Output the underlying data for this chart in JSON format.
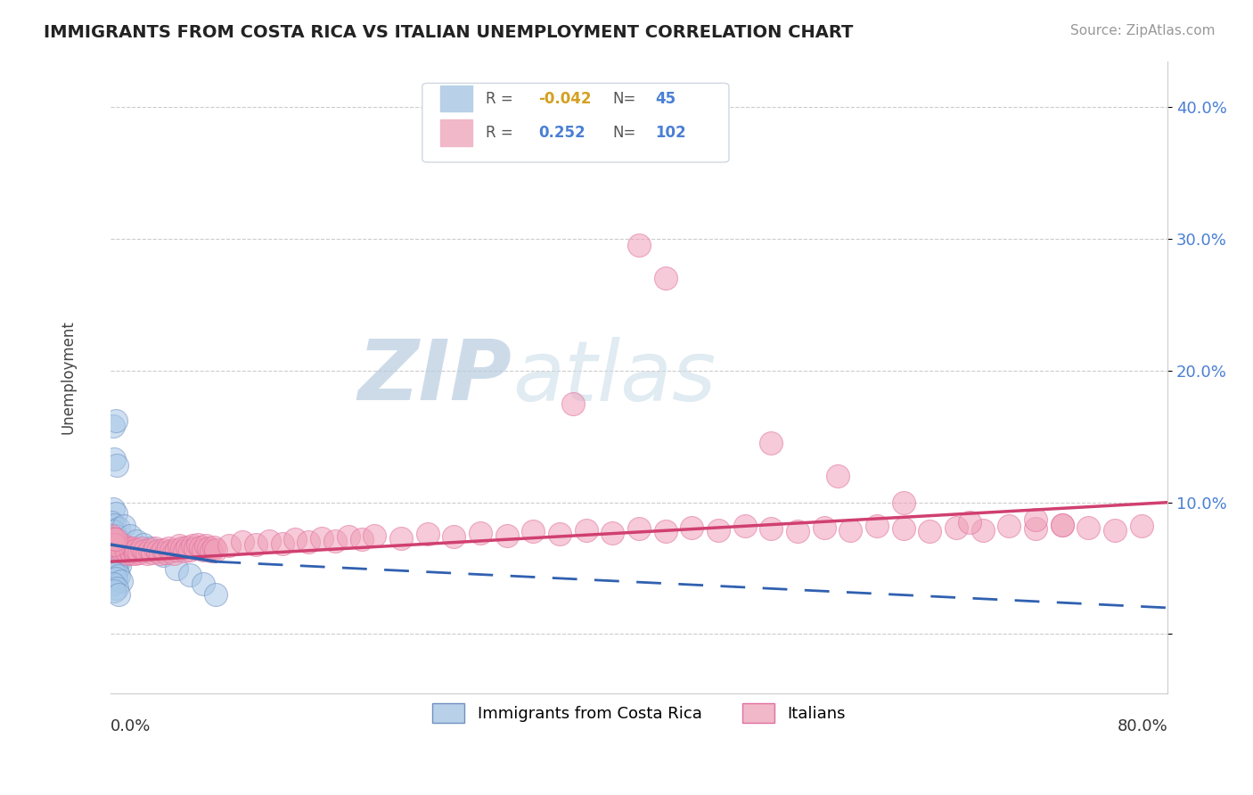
{
  "title": "IMMIGRANTS FROM COSTA RICA VS ITALIAN UNEMPLOYMENT CORRELATION CHART",
  "source": "Source: ZipAtlas.com",
  "ylabel": "Unemployment",
  "y_ticks": [
    0.0,
    0.1,
    0.2,
    0.3,
    0.4
  ],
  "y_tick_labels": [
    "",
    "10.0%",
    "20.0%",
    "30.0%",
    "40.0%"
  ],
  "x_range": [
    0.0,
    0.8
  ],
  "y_range": [
    -0.045,
    0.435
  ],
  "blue_R": -0.042,
  "blue_N": 45,
  "pink_R": 0.252,
  "pink_N": 102,
  "blue_color": "#a8c8e8",
  "pink_color": "#f0a0b8",
  "blue_edge_color": "#7090c0",
  "pink_edge_color": "#e070a0",
  "blue_line_color": "#3060b0",
  "pink_line_color": "#d04070",
  "r_negative_color": "#d4a020",
  "r_positive_color": "#4a7fd4",
  "n_color": "#4a7fd4",
  "watermark_color": "#c8d8e8",
  "legend_label_blue": "Immigrants from Costa Rica",
  "legend_label_pink": "Italians",
  "blue_scatter": [
    [
      0.002,
      0.158
    ],
    [
      0.004,
      0.162
    ],
    [
      0.003,
      0.133
    ],
    [
      0.005,
      0.128
    ],
    [
      0.002,
      0.095
    ],
    [
      0.004,
      0.092
    ],
    [
      0.001,
      0.085
    ],
    [
      0.003,
      0.083
    ],
    [
      0.006,
      0.08
    ],
    [
      0.002,
      0.078
    ],
    [
      0.004,
      0.075
    ],
    [
      0.005,
      0.072
    ],
    [
      0.007,
      0.07
    ],
    [
      0.003,
      0.068
    ],
    [
      0.008,
      0.067
    ],
    [
      0.006,
      0.066
    ],
    [
      0.004,
      0.065
    ],
    [
      0.007,
      0.063
    ],
    [
      0.002,
      0.062
    ],
    [
      0.005,
      0.06
    ],
    [
      0.008,
      0.059
    ],
    [
      0.003,
      0.057
    ],
    [
      0.006,
      0.055
    ],
    [
      0.004,
      0.054
    ],
    [
      0.007,
      0.052
    ],
    [
      0.002,
      0.05
    ],
    [
      0.005,
      0.048
    ],
    [
      0.003,
      0.046
    ],
    [
      0.006,
      0.044
    ],
    [
      0.004,
      0.042
    ],
    [
      0.008,
      0.04
    ],
    [
      0.002,
      0.038
    ],
    [
      0.005,
      0.035
    ],
    [
      0.003,
      0.033
    ],
    [
      0.006,
      0.03
    ],
    [
      0.01,
      0.082
    ],
    [
      0.015,
      0.075
    ],
    [
      0.02,
      0.071
    ],
    [
      0.025,
      0.068
    ],
    [
      0.03,
      0.065
    ],
    [
      0.04,
      0.06
    ],
    [
      0.05,
      0.05
    ],
    [
      0.06,
      0.045
    ],
    [
      0.07,
      0.038
    ],
    [
      0.08,
      0.03
    ]
  ],
  "pink_scatter": [
    [
      0.001,
      0.075
    ],
    [
      0.002,
      0.072
    ],
    [
      0.003,
      0.07
    ],
    [
      0.004,
      0.068
    ],
    [
      0.005,
      0.066
    ],
    [
      0.006,
      0.064
    ],
    [
      0.007,
      0.068
    ],
    [
      0.008,
      0.065
    ],
    [
      0.009,
      0.063
    ],
    [
      0.01,
      0.067
    ],
    [
      0.011,
      0.065
    ],
    [
      0.012,
      0.063
    ],
    [
      0.013,
      0.061
    ],
    [
      0.014,
      0.065
    ],
    [
      0.015,
      0.063
    ],
    [
      0.016,
      0.061
    ],
    [
      0.017,
      0.065
    ],
    [
      0.018,
      0.063
    ],
    [
      0.019,
      0.061
    ],
    [
      0.02,
      0.064
    ],
    [
      0.022,
      0.062
    ],
    [
      0.024,
      0.065
    ],
    [
      0.026,
      0.063
    ],
    [
      0.028,
      0.061
    ],
    [
      0.03,
      0.064
    ],
    [
      0.032,
      0.062
    ],
    [
      0.034,
      0.065
    ],
    [
      0.036,
      0.063
    ],
    [
      0.038,
      0.061
    ],
    [
      0.04,
      0.064
    ],
    [
      0.042,
      0.062
    ],
    [
      0.044,
      0.065
    ],
    [
      0.046,
      0.063
    ],
    [
      0.048,
      0.061
    ],
    [
      0.05,
      0.064
    ],
    [
      0.052,
      0.067
    ],
    [
      0.054,
      0.065
    ],
    [
      0.056,
      0.063
    ],
    [
      0.058,
      0.066
    ],
    [
      0.06,
      0.064
    ],
    [
      0.062,
      0.067
    ],
    [
      0.064,
      0.065
    ],
    [
      0.066,
      0.068
    ],
    [
      0.068,
      0.066
    ],
    [
      0.07,
      0.064
    ],
    [
      0.072,
      0.067
    ],
    [
      0.074,
      0.065
    ],
    [
      0.076,
      0.063
    ],
    [
      0.078,
      0.066
    ],
    [
      0.08,
      0.064
    ],
    [
      0.09,
      0.067
    ],
    [
      0.1,
      0.07
    ],
    [
      0.11,
      0.068
    ],
    [
      0.12,
      0.071
    ],
    [
      0.13,
      0.069
    ],
    [
      0.14,
      0.072
    ],
    [
      0.15,
      0.07
    ],
    [
      0.16,
      0.073
    ],
    [
      0.17,
      0.071
    ],
    [
      0.18,
      0.074
    ],
    [
      0.19,
      0.072
    ],
    [
      0.2,
      0.075
    ],
    [
      0.22,
      0.073
    ],
    [
      0.24,
      0.076
    ],
    [
      0.26,
      0.074
    ],
    [
      0.28,
      0.077
    ],
    [
      0.3,
      0.075
    ],
    [
      0.32,
      0.078
    ],
    [
      0.34,
      0.076
    ],
    [
      0.36,
      0.079
    ],
    [
      0.38,
      0.077
    ],
    [
      0.4,
      0.08
    ],
    [
      0.42,
      0.078
    ],
    [
      0.44,
      0.081
    ],
    [
      0.46,
      0.079
    ],
    [
      0.48,
      0.082
    ],
    [
      0.5,
      0.08
    ],
    [
      0.52,
      0.078
    ],
    [
      0.54,
      0.081
    ],
    [
      0.56,
      0.079
    ],
    [
      0.58,
      0.082
    ],
    [
      0.6,
      0.08
    ],
    [
      0.62,
      0.078
    ],
    [
      0.64,
      0.081
    ],
    [
      0.66,
      0.079
    ],
    [
      0.68,
      0.082
    ],
    [
      0.7,
      0.08
    ],
    [
      0.72,
      0.083
    ],
    [
      0.74,
      0.081
    ],
    [
      0.76,
      0.079
    ],
    [
      0.78,
      0.082
    ],
    [
      0.002,
      0.073
    ],
    [
      0.003,
      0.068
    ],
    [
      0.004,
      0.072
    ],
    [
      0.35,
      0.175
    ],
    [
      0.5,
      0.145
    ],
    [
      0.55,
      0.12
    ],
    [
      0.6,
      0.1
    ],
    [
      0.4,
      0.295
    ],
    [
      0.42,
      0.27
    ],
    [
      0.65,
      0.085
    ],
    [
      0.7,
      0.087
    ],
    [
      0.72,
      0.083
    ]
  ]
}
